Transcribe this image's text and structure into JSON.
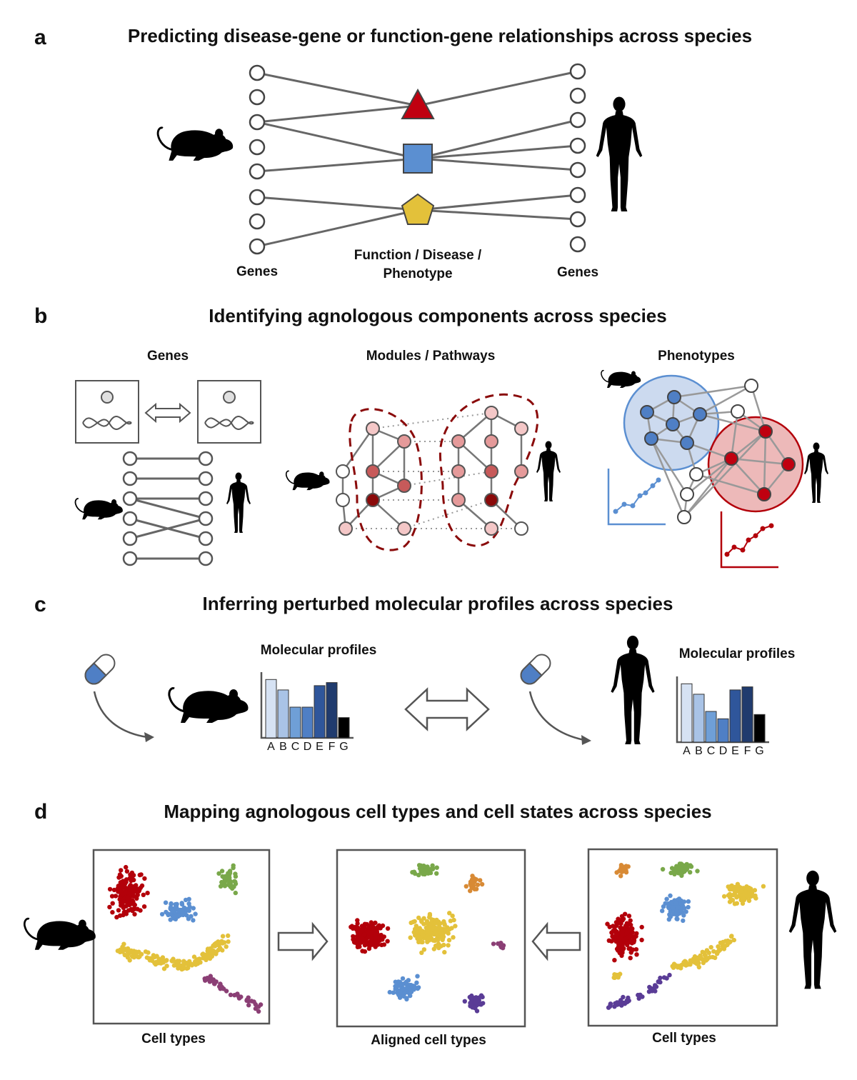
{
  "panel_a": {
    "letter": "a",
    "title": "Predicting disease-gene or function-gene relationships across species",
    "left_label": "Genes",
    "center_label_line1": "Function / Disease /",
    "center_label_line2": "Phenotype",
    "right_label": "Genes"
  },
  "panel_b": {
    "letter": "b",
    "title": "Identifying agnologous components across species",
    "col1_label": "Genes",
    "col2_label": "Modules / Pathways",
    "col3_label": "Phenotypes"
  },
  "panel_c": {
    "letter": "c",
    "title": "Inferring perturbed molecular profiles across species",
    "left_profile_title": "Molecular profiles",
    "right_profile_title": "Molecular profiles",
    "bar_categories": [
      "A",
      "B",
      "C",
      "D",
      "E",
      "F",
      "G"
    ],
    "left_bar_values": [
      0.95,
      0.78,
      0.5,
      0.5,
      0.85,
      0.9,
      0.33
    ],
    "right_bar_values": [
      0.95,
      0.78,
      0.5,
      0.38,
      0.85,
      0.9,
      0.45
    ],
    "bar_colors": [
      "#d6e2f3",
      "#a9c3e6",
      "#6f9fd7",
      "#4f7fc5",
      "#2f569b",
      "#203b6e",
      "#000000"
    ]
  },
  "panel_d": {
    "letter": "d",
    "title": "Mapping agnologous cell types and cell states across species",
    "left_caption": "Cell types",
    "center_caption": "Aligned cell types",
    "right_caption": "Cell types"
  },
  "colors": {
    "red": "#b3000a",
    "blue": "#5b8fd1",
    "yellow": "#e3c13a",
    "green": "#79a84a",
    "orange": "#d88a35",
    "purple": "#8b3f75",
    "violet": "#5a3c96",
    "edge": "#666666"
  },
  "icons": [
    "mouse-icon",
    "human-icon",
    "pill-icon",
    "dna-icon",
    "double-arrow-icon",
    "right-arrow-icon",
    "left-arrow-icon"
  ]
}
